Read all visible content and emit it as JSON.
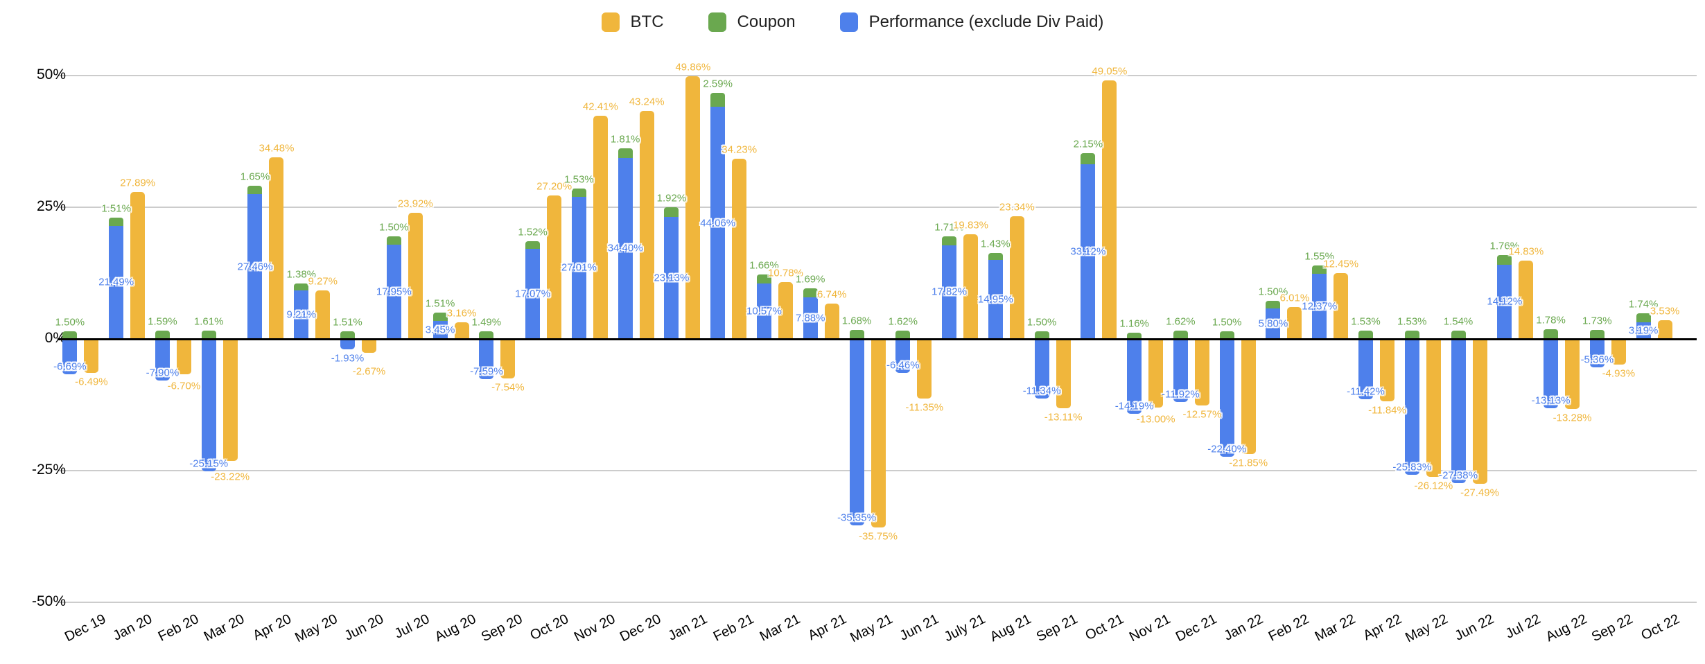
{
  "legend": {
    "items": [
      {
        "label": "BTC",
        "color": "#F0B63C"
      },
      {
        "label": "Coupon",
        "color": "#6AA84F"
      },
      {
        "label": "Performance (exclude Div Paid)",
        "color": "#4E80EB"
      }
    ]
  },
  "y_axis": {
    "ticks": [
      {
        "label": "50%",
        "value": 50
      },
      {
        "label": "25%",
        "value": 25
      },
      {
        "label": "0%",
        "value": 0
      },
      {
        "label": "-25%",
        "value": -25
      },
      {
        "label": "-50%",
        "value": -50
      }
    ]
  },
  "chart_data": {
    "type": "bar",
    "title": "",
    "xlabel": "",
    "ylabel": "",
    "ylim": [
      -50,
      50
    ],
    "grid": true,
    "legend_position": "top",
    "value_format": "0.00%",
    "structure": "Performance (blue) and Coupon (green) stacked in one column; BTC (yellow) in adjacent column; monthly returns with data labels",
    "categories": [
      "Dec 19",
      "Jan 20",
      "Feb 20",
      "Mar 20",
      "Apr 20",
      "May 20",
      "Jun 20",
      "Jul 20",
      "Aug 20",
      "Sep 20",
      "Oct 20",
      "Nov 20",
      "Dec 20",
      "Jan 21",
      "Feb 21",
      "Mar 21",
      "Apr 21",
      "May 21",
      "Jun 21",
      "July 21",
      "Aug 21",
      "Sep 21",
      "Oct 21",
      "Nov 21",
      "Dec 21",
      "Jan 22",
      "Feb 22",
      "Mar 22",
      "Apr 22",
      "May 22",
      "Jun 22",
      "Jul 22",
      "Aug 22",
      "Sep 22",
      "Oct 22"
    ],
    "series": [
      {
        "name": "BTC",
        "color": "#F0B63C",
        "values": [
          -6.49,
          27.89,
          -6.7,
          -23.22,
          34.48,
          9.27,
          -2.67,
          23.92,
          3.16,
          -7.54,
          27.2,
          42.41,
          43.24,
          49.86,
          34.23,
          10.78,
          6.74,
          -35.75,
          -11.35,
          19.83,
          23.34,
          -13.11,
          49.05,
          -13.0,
          -12.57,
          -21.85,
          6.01,
          12.45,
          -11.84,
          -26.12,
          -27.49,
          14.83,
          -13.28,
          -4.93,
          3.53
        ]
      },
      {
        "name": "Coupon",
        "color": "#6AA84F",
        "values": [
          1.5,
          1.51,
          1.59,
          1.61,
          1.65,
          1.38,
          1.51,
          1.5,
          1.51,
          1.49,
          1.52,
          1.53,
          1.81,
          1.92,
          2.59,
          1.66,
          1.69,
          1.68,
          1.62,
          1.71,
          1.43,
          1.5,
          2.15,
          1.16,
          1.62,
          1.5,
          1.5,
          1.55,
          1.53,
          1.53,
          1.54,
          1.76,
          1.78,
          1.73,
          1.74
        ]
      },
      {
        "name": "Performance (exclude Div Paid)",
        "color": "#4E80EB",
        "values": [
          -6.69,
          21.49,
          -7.9,
          -25.15,
          27.46,
          9.21,
          -1.93,
          17.95,
          3.45,
          -7.59,
          17.07,
          27.01,
          34.4,
          23.13,
          44.06,
          10.57,
          7.88,
          -35.35,
          -6.46,
          17.82,
          14.95,
          -11.34,
          33.12,
          -14.19,
          -11.92,
          -22.4,
          5.8,
          12.37,
          -11.42,
          -25.83,
          -27.38,
          14.12,
          -13.13,
          -5.36,
          3.19
        ]
      }
    ]
  }
}
